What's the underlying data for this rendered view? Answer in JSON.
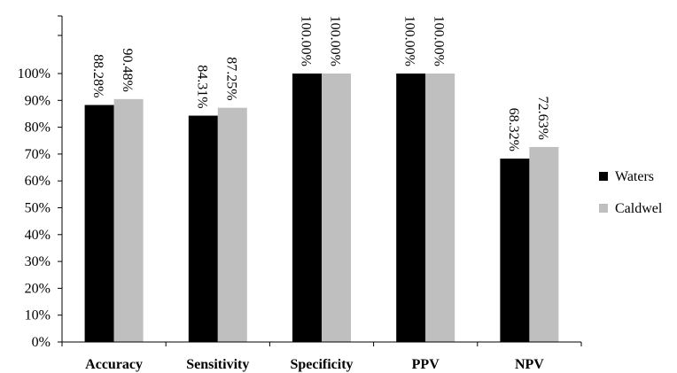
{
  "chart_data": {
    "type": "bar",
    "categories": [
      "Accuracy",
      "Sensitivity",
      "Specificity",
      "PPV",
      "NPV"
    ],
    "series": [
      {
        "name": "Waters",
        "color": "#000000",
        "values": [
          88.28,
          84.31,
          100.0,
          100.0,
          68.32
        ],
        "labels": [
          "88.28%",
          "84.31%",
          "100.00%",
          "100.00%",
          "68.32%"
        ]
      },
      {
        "name": "Caldwel",
        "color": "#bfbfbf",
        "values": [
          90.48,
          87.25,
          100.0,
          100.0,
          72.63
        ],
        "labels": [
          "90.48%",
          "87.25%",
          "100.00%",
          "100.00%",
          "72.63%"
        ]
      }
    ],
    "ylim": [
      0,
      100
    ],
    "y_ticks": [
      0,
      10,
      20,
      30,
      40,
      50,
      60,
      70,
      80,
      90,
      100
    ],
    "y_tick_labels": [
      "0%",
      "10%",
      "20%",
      "30%",
      "40%",
      "50%",
      "60%",
      "70%",
      "80%",
      "90%",
      "100%"
    ],
    "title": "",
    "xlabel": "",
    "ylabel": "",
    "grid": false,
    "legend_position": "right"
  }
}
